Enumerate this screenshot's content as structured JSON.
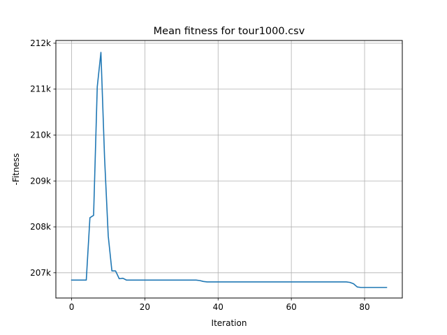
{
  "chart_data": {
    "type": "line",
    "title": "Mean fitness for tour1000.csv",
    "xlabel": "Iteration",
    "ylabel": "-Fitness",
    "xlim": [
      -4.3,
      90.3
    ],
    "ylim": [
      206450,
      212060
    ],
    "xticks": [
      0,
      20,
      40,
      60,
      80
    ],
    "yticks": [
      207000,
      208000,
      209000,
      210000,
      211000,
      212000
    ],
    "ytick_labels": [
      "207k",
      "208k",
      "209k",
      "210k",
      "211k",
      "212k"
    ],
    "grid": true,
    "line_color": "#1f77b4",
    "series": [
      {
        "x": [
          0,
          1,
          2,
          3,
          4,
          5,
          6,
          7,
          8,
          9,
          10,
          11,
          12,
          13,
          14,
          15,
          16,
          17,
          18,
          19,
          20,
          21,
          22,
          23,
          24,
          25,
          26,
          27,
          28,
          29,
          30,
          31,
          32,
          33,
          34,
          35,
          36,
          37,
          38,
          39,
          40,
          41,
          42,
          43,
          44,
          45,
          46,
          47,
          48,
          49,
          50,
          51,
          52,
          53,
          54,
          55,
          56,
          57,
          58,
          59,
          60,
          61,
          62,
          63,
          64,
          65,
          66,
          67,
          68,
          69,
          70,
          71,
          72,
          73,
          74,
          75,
          76,
          77,
          78,
          79,
          80,
          81,
          82,
          83,
          84,
          85,
          86
        ],
        "y": [
          206840,
          206840,
          206840,
          206840,
          206840,
          208200,
          208250,
          211050,
          211800,
          209500,
          207800,
          207040,
          207040,
          206870,
          206880,
          206840,
          206840,
          206840,
          206840,
          206840,
          206840,
          206840,
          206840,
          206840,
          206840,
          206840,
          206840,
          206840,
          206840,
          206840,
          206840,
          206840,
          206840,
          206840,
          206840,
          206830,
          206810,
          206800,
          206800,
          206800,
          206800,
          206800,
          206800,
          206800,
          206800,
          206800,
          206800,
          206800,
          206800,
          206800,
          206800,
          206800,
          206800,
          206800,
          206800,
          206800,
          206800,
          206800,
          206800,
          206800,
          206800,
          206800,
          206800,
          206800,
          206800,
          206800,
          206800,
          206800,
          206800,
          206800,
          206800,
          206800,
          206800,
          206800,
          206800,
          206800,
          206790,
          206760,
          206690,
          206680,
          206680,
          206680,
          206680,
          206680,
          206680,
          206680,
          206680
        ]
      }
    ]
  }
}
